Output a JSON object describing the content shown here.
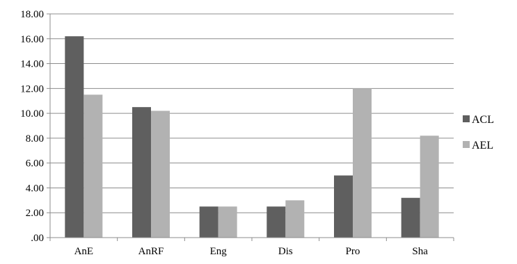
{
  "chart_data": {
    "type": "bar",
    "categories": [
      "AnE",
      "AnRF",
      "Eng",
      "Dis",
      "Pro",
      "Sha"
    ],
    "series": [
      {
        "name": "ACL",
        "values": [
          16.2,
          10.5,
          2.5,
          2.5,
          5.0,
          3.2
        ],
        "color": "#5f5f5f"
      },
      {
        "name": "AEL",
        "values": [
          11.5,
          10.2,
          2.5,
          3.0,
          12.0,
          8.2
        ],
        "color": "#b2b2b2"
      }
    ],
    "ylim": [
      0,
      18
    ],
    "yticks": [
      ".00",
      "2.00",
      "4.00",
      "6.00",
      "8.00",
      "10.00",
      "12.00",
      "14.00",
      "16.00",
      "18.00"
    ],
    "ytick_step": 2,
    "grid": true,
    "legend_position": "right",
    "title": "",
    "xlabel": "",
    "ylabel": ""
  }
}
